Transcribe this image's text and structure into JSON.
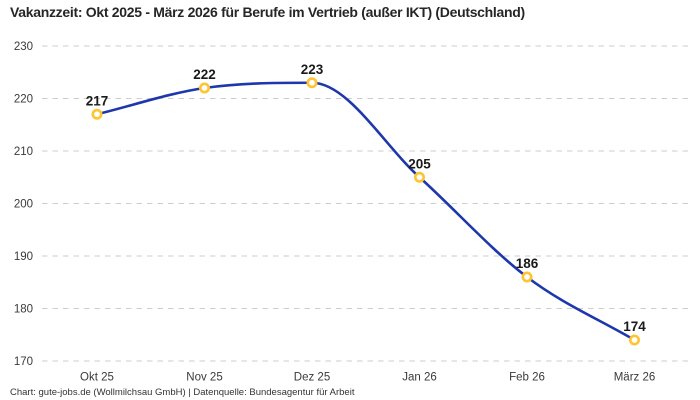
{
  "title": "Vakanzzeit: Okt 2025 - März 2026 für Berufe im Vertrieb (außer IKT) (Deutschland)",
  "footer": "Chart: gute-jobs.de (Wollmilchsau GmbH) | Datenquelle: Bundesagentur für Arbeit",
  "chart_data": {
    "type": "line",
    "title": "Vakanzzeit: Okt 2025 - März 2026 für Berufe im Vertrieb (außer IKT) (Deutschland)",
    "categories": [
      "Okt 25",
      "Nov 25",
      "Dez 25",
      "Jan 26",
      "Feb 26",
      "März 26"
    ],
    "values": [
      217,
      222,
      223,
      205,
      186,
      174
    ],
    "data_labels": [
      "217",
      "222",
      "223",
      "205",
      "186",
      "174"
    ],
    "ylim": [
      170,
      230
    ],
    "yticks": [
      170,
      180,
      190,
      200,
      210,
      220,
      230
    ],
    "xlabel": "",
    "ylabel": "",
    "grid": "horizontal-dashed",
    "legend": "none",
    "smooth": true,
    "colors": {
      "line": "#1e37aa",
      "marker_ring": "#ffc431",
      "marker_fill": "#ffffff",
      "grid": "#cdcdcd",
      "tick_label": "#3a3a3a",
      "data_label": "#1a1a1a"
    }
  }
}
